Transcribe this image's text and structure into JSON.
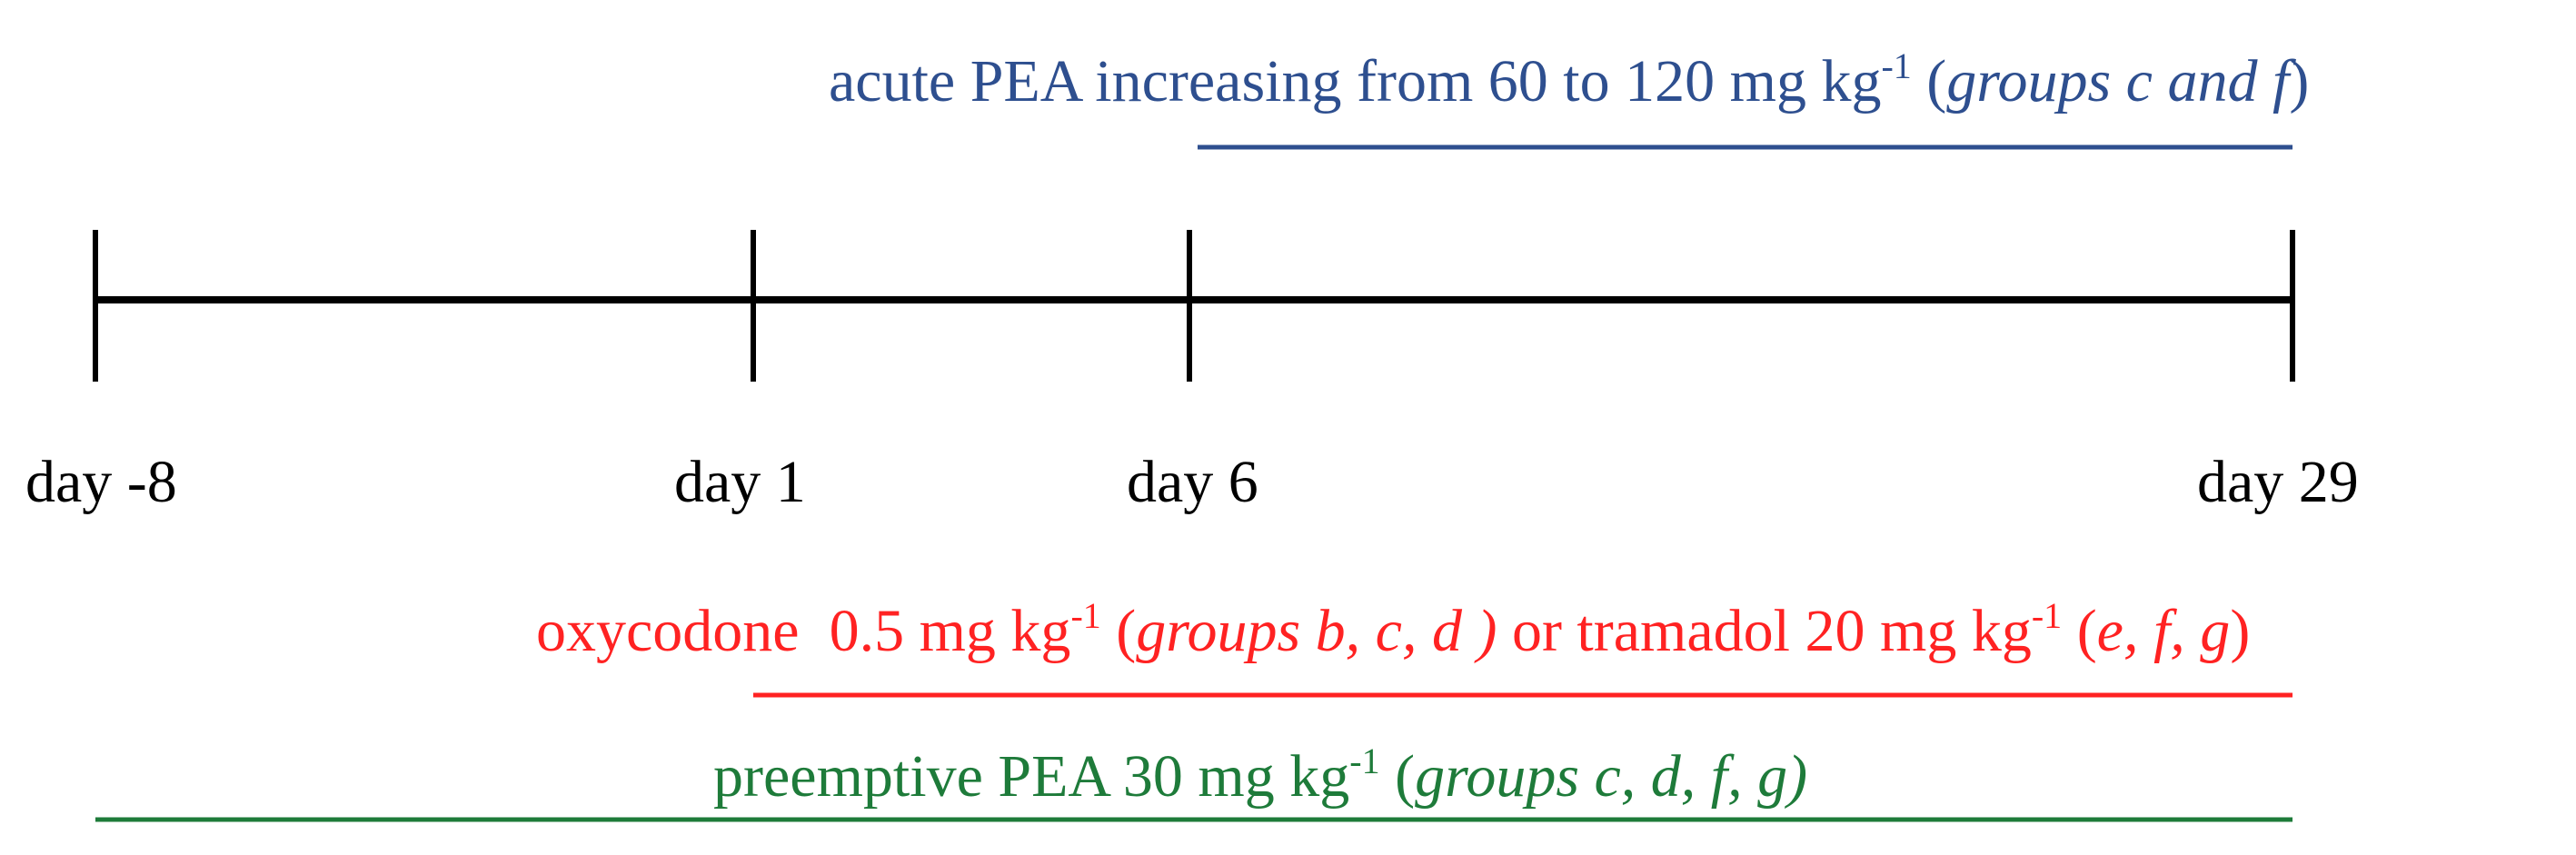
{
  "colors": {
    "axis": "#000000",
    "acute": "#2e4f8f",
    "oxy": "#ff2222",
    "preemptive": "#1e7b3a"
  },
  "days": [
    "day -8",
    "day 1",
    "day 6",
    "day 29"
  ],
  "acute": {
    "text": "acute PEA increasing from 60 to 120 mg kg",
    "exp": "-1",
    "paren_open": " (",
    "groups": "groups c and f",
    "paren_close": ")"
  },
  "oxy": {
    "text1": "oxycodone  0.5 mg kg",
    "exp1": "-1",
    "paren_open1": " (",
    "groups1": "groups b, c, d )",
    "text2": " or tramadol 20 mg kg",
    "exp2": "-1",
    "paren_open2": " (",
    "groups2": "e, f, g",
    "paren_close2": ")"
  },
  "preemptive": {
    "text": "preemptive PEA 30 mg kg",
    "exp": "-1",
    "paren_open": " (",
    "groups": "groups c, d, f, g)"
  }
}
